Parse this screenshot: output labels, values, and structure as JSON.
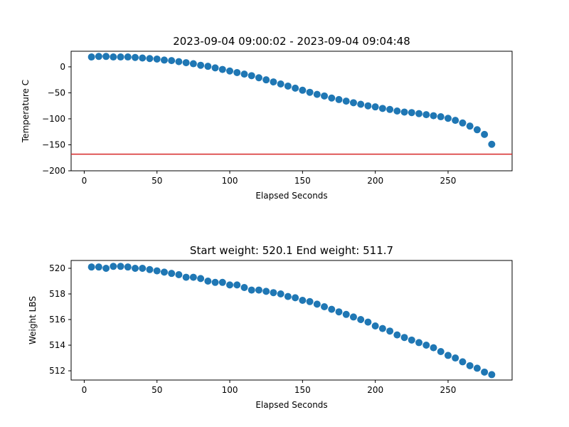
{
  "chart_data": [
    {
      "type": "scatter",
      "title": "2023-09-04 09:00:02 - 2023-09-04 09:04:48",
      "x_label": "Elapsed Seconds",
      "y_label": "Temperature C",
      "color": "#1f77b4",
      "x": [
        5,
        10,
        15,
        20,
        25,
        30,
        35,
        40,
        45,
        50,
        55,
        60,
        65,
        70,
        75,
        80,
        85,
        90,
        95,
        100,
        105,
        110,
        115,
        120,
        125,
        130,
        135,
        140,
        145,
        150,
        155,
        160,
        165,
        170,
        175,
        180,
        185,
        190,
        195,
        200,
        205,
        210,
        215,
        220,
        225,
        230,
        235,
        240,
        245,
        250,
        255,
        260,
        265,
        270,
        275,
        280
      ],
      "values": [
        19,
        20,
        20,
        19,
        19,
        19,
        18,
        17,
        16,
        15,
        13,
        12,
        10,
        8,
        6,
        3,
        1,
        -2,
        -5,
        -8,
        -11,
        -14,
        -17,
        -21,
        -25,
        -29,
        -33,
        -37,
        -41,
        -45,
        -49,
        -53,
        -56,
        -60,
        -63,
        -66,
        -69,
        -72,
        -75,
        -77,
        -80,
        -82,
        -85,
        -87,
        -88,
        -90,
        -92,
        -94,
        -96,
        -99,
        -103,
        -108,
        -114,
        -121,
        -130,
        -149
      ],
      "reference_line": {
        "value": -168,
        "color": "#d62728"
      },
      "xlim": [
        -9,
        294
      ],
      "xticks": [
        0,
        50,
        100,
        150,
        200,
        250
      ],
      "ylim": [
        -200,
        30
      ],
      "yticks": [
        {
          "value": -200,
          "label": "−200"
        },
        {
          "value": -150,
          "label": "−150"
        },
        {
          "value": -100,
          "label": "−100"
        },
        {
          "value": -50,
          "label": "−50"
        },
        0
      ]
    },
    {
      "type": "scatter",
      "title": "Start weight: 520.1 End weight: 511.7",
      "x_label": "Elapsed Seconds",
      "y_label": "Weight LBS",
      "color": "#1f77b4",
      "x": [
        5,
        10,
        15,
        20,
        25,
        30,
        35,
        40,
        45,
        50,
        55,
        60,
        65,
        70,
        75,
        80,
        85,
        90,
        95,
        100,
        105,
        110,
        115,
        120,
        125,
        130,
        135,
        140,
        145,
        150,
        155,
        160,
        165,
        170,
        175,
        180,
        185,
        190,
        195,
        200,
        205,
        210,
        215,
        220,
        225,
        230,
        235,
        240,
        245,
        250,
        255,
        260,
        265,
        270,
        275,
        280
      ],
      "values": [
        520.1,
        520.1,
        520.0,
        520.15,
        520.15,
        520.1,
        520.0,
        520.0,
        519.9,
        519.8,
        519.7,
        519.6,
        519.5,
        519.3,
        519.3,
        519.2,
        519.0,
        518.9,
        518.9,
        518.7,
        518.7,
        518.5,
        518.3,
        518.3,
        518.2,
        518.1,
        518.0,
        517.8,
        517.7,
        517.5,
        517.4,
        517.2,
        517.0,
        516.8,
        516.6,
        516.4,
        516.2,
        516.0,
        515.8,
        515.5,
        515.3,
        515.1,
        514.8,
        514.6,
        514.4,
        514.2,
        514.0,
        513.8,
        513.5,
        513.2,
        513.0,
        512.7,
        512.4,
        512.2,
        511.9,
        511.7
      ],
      "xlim": [
        -9,
        294
      ],
      "xticks": [
        0,
        50,
        100,
        150,
        200,
        250
      ],
      "ylim": [
        511.28,
        520.61
      ],
      "yticks": [
        512,
        514,
        516,
        518,
        520
      ]
    }
  ]
}
